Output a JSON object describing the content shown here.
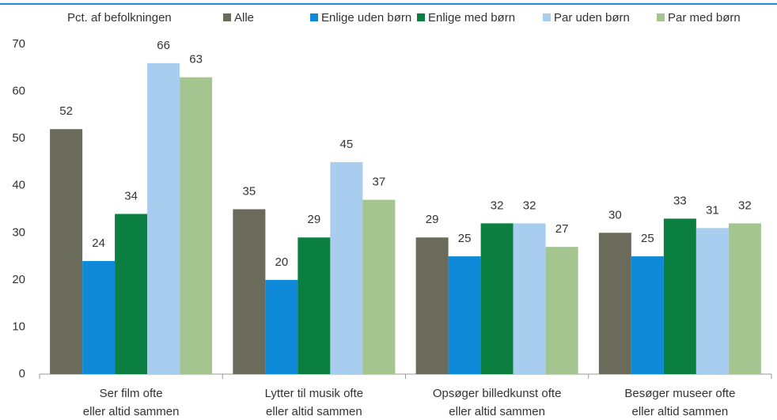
{
  "chart_data": {
    "type": "bar",
    "ylabel": "Pct. af befolkningen",
    "categories": [
      "Ser film ofte\neller altid sammen",
      "Lytter til musik ofte\neller altid sammen",
      "Opsøger billedkunst ofte\neller altid sammen",
      "Besøger museer ofte\neller altid sammen"
    ],
    "series": [
      {
        "name": "Alle",
        "color": "#6b6b5b",
        "values": [
          52,
          35,
          29,
          30
        ]
      },
      {
        "name": "Enlige uden børn",
        "color": "#0e8ad8",
        "values": [
          24,
          20,
          25,
          25
        ]
      },
      {
        "name": "Enlige med børn",
        "color": "#0a7f3f",
        "values": [
          34,
          29,
          32,
          33
        ]
      },
      {
        "name": "Par uden børn",
        "color": "#a9cdef",
        "values": [
          66,
          45,
          32,
          31
        ]
      },
      {
        "name": "Par med børn",
        "color": "#a4c490",
        "values": [
          63,
          37,
          27,
          32
        ]
      }
    ],
    "ylim": [
      0,
      70
    ],
    "yticks": [
      0,
      10,
      20,
      30,
      40,
      50,
      60,
      70
    ],
    "grid": false
  }
}
